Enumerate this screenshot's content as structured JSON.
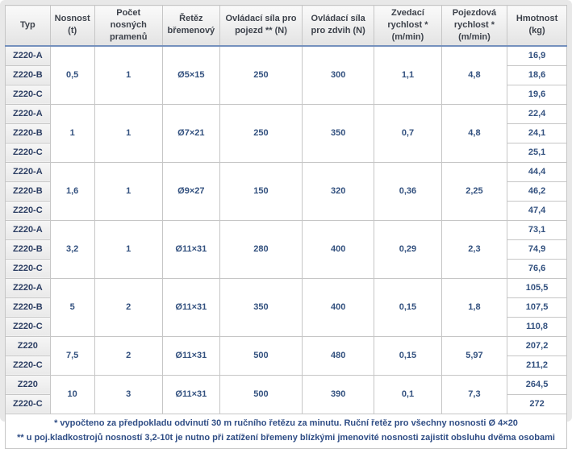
{
  "colors": {
    "frame_bg": "#e8e8e8",
    "header_bg_top": "#fafafa",
    "header_bg_bottom": "#e3e3e3",
    "header_text": "#3d424b",
    "data_text": "#33517f",
    "type_text": "#2c3e63",
    "grid_border": "#c6c6c6",
    "header_accent_line": "#7490bd"
  },
  "table": {
    "headers": [
      "Typ",
      "Nosnost (t)",
      "Počet nosných pramenů",
      "Řetěz břemenový",
      "Ovládací síla pro pojezd ** (N)",
      "Ovládací síla pro zdvih (N)",
      "Zvedací rychlost * (m/min)",
      "Pojezdová rychlost * (m/min)",
      "Hmotnost (kg)"
    ],
    "groups": [
      {
        "types": [
          "Z220-A",
          "Z220-B",
          "Z220-C"
        ],
        "capacity": "0,5",
        "strands": "1",
        "chain": "Ø5×15",
        "travel_force": "250",
        "lift_force": "300",
        "lift_speed": "1,1",
        "travel_speed": "4,8",
        "weights": [
          "16,9",
          "18,6",
          "19,6"
        ]
      },
      {
        "types": [
          "Z220-A",
          "Z220-B",
          "Z220-C"
        ],
        "capacity": "1",
        "strands": "1",
        "chain": "Ø7×21",
        "travel_force": "250",
        "lift_force": "350",
        "lift_speed": "0,7",
        "travel_speed": "4,8",
        "weights": [
          "22,4",
          "24,1",
          "25,1"
        ]
      },
      {
        "types": [
          "Z220-A",
          "Z220-B",
          "Z220-C"
        ],
        "capacity": "1,6",
        "strands": "1",
        "chain": "Ø9×27",
        "travel_force": "150",
        "lift_force": "320",
        "lift_speed": "0,36",
        "travel_speed": "2,25",
        "weights": [
          "44,4",
          "46,2",
          "47,4"
        ]
      },
      {
        "types": [
          "Z220-A",
          "Z220-B",
          "Z220-C"
        ],
        "capacity": "3,2",
        "strands": "1",
        "chain": "Ø11×31",
        "travel_force": "280",
        "lift_force": "400",
        "lift_speed": "0,29",
        "travel_speed": "2,3",
        "weights": [
          "73,1",
          "74,9",
          "76,6"
        ]
      },
      {
        "types": [
          "Z220-A",
          "Z220-B",
          "Z220-C"
        ],
        "capacity": "5",
        "strands": "2",
        "chain": "Ø11×31",
        "travel_force": "350",
        "lift_force": "400",
        "lift_speed": "0,15",
        "travel_speed": "1,8",
        "weights": [
          "105,5",
          "107,5",
          "110,8"
        ]
      },
      {
        "types": [
          "Z220",
          "Z220-C"
        ],
        "capacity": "7,5",
        "strands": "2",
        "chain": "Ø11×31",
        "travel_force": "500",
        "lift_force": "480",
        "lift_speed": "0,15",
        "travel_speed": "5,97",
        "weights": [
          "207,2",
          "211,2"
        ]
      },
      {
        "types": [
          "Z220",
          "Z220-C"
        ],
        "capacity": "10",
        "strands": "3",
        "chain": "Ø11×31",
        "travel_force": "500",
        "lift_force": "390",
        "lift_speed": "0,1",
        "travel_speed": "7,3",
        "weights": [
          "264,5",
          "272"
        ]
      }
    ],
    "footnotes": [
      "* vypočteno za předpokladu odvinutí 30 m ručního řetězu za minutu. Ruční řetěz pro všechny nosnosti Ø 4×20",
      "** u poj.kladkostrojů nosností 3,2-10t je nutno při zatížení břemeny blízkými jmenovité nosnosti zajistit obsluhu dvěma osobami"
    ]
  },
  "chart_data": {
    "type": "table",
    "columns": [
      "Typ",
      "Nosnost (t)",
      "Počet nosných pramenů",
      "Řetěz břemenový",
      "Ovládací síla pro pojezd ** (N)",
      "Ovládací síla pro zdvih (N)",
      "Zvedací rychlost * (m/min)",
      "Pojezdová rychlost * (m/min)",
      "Hmotnost (kg)"
    ],
    "rows": [
      [
        "Z220-A",
        "0,5",
        "1",
        "Ø5×15",
        "250",
        "300",
        "1,1",
        "4,8",
        "16,9"
      ],
      [
        "Z220-B",
        "0,5",
        "1",
        "Ø5×15",
        "250",
        "300",
        "1,1",
        "4,8",
        "18,6"
      ],
      [
        "Z220-C",
        "0,5",
        "1",
        "Ø5×15",
        "250",
        "300",
        "1,1",
        "4,8",
        "19,6"
      ],
      [
        "Z220-A",
        "1",
        "1",
        "Ø7×21",
        "250",
        "350",
        "0,7",
        "4,8",
        "22,4"
      ],
      [
        "Z220-B",
        "1",
        "1",
        "Ø7×21",
        "250",
        "350",
        "0,7",
        "4,8",
        "24,1"
      ],
      [
        "Z220-C",
        "1",
        "1",
        "Ø7×21",
        "250",
        "350",
        "0,7",
        "4,8",
        "25,1"
      ],
      [
        "Z220-A",
        "1,6",
        "1",
        "Ø9×27",
        "150",
        "320",
        "0,36",
        "2,25",
        "44,4"
      ],
      [
        "Z220-B",
        "1,6",
        "1",
        "Ø9×27",
        "150",
        "320",
        "0,36",
        "2,25",
        "46,2"
      ],
      [
        "Z220-C",
        "1,6",
        "1",
        "Ø9×27",
        "150",
        "320",
        "0,36",
        "2,25",
        "47,4"
      ],
      [
        "Z220-A",
        "3,2",
        "1",
        "Ø11×31",
        "280",
        "400",
        "0,29",
        "2,3",
        "73,1"
      ],
      [
        "Z220-B",
        "3,2",
        "1",
        "Ø11×31",
        "280",
        "400",
        "0,29",
        "2,3",
        "74,9"
      ],
      [
        "Z220-C",
        "3,2",
        "1",
        "Ø11×31",
        "280",
        "400",
        "0,29",
        "2,3",
        "76,6"
      ],
      [
        "Z220-A",
        "5",
        "2",
        "Ø11×31",
        "350",
        "400",
        "0,15",
        "1,8",
        "105,5"
      ],
      [
        "Z220-B",
        "5",
        "2",
        "Ø11×31",
        "350",
        "400",
        "0,15",
        "1,8",
        "107,5"
      ],
      [
        "Z220-C",
        "5",
        "2",
        "Ø11×31",
        "350",
        "400",
        "0,15",
        "1,8",
        "110,8"
      ],
      [
        "Z220",
        "7,5",
        "2",
        "Ø11×31",
        "500",
        "480",
        "0,15",
        "5,97",
        "207,2"
      ],
      [
        "Z220-C",
        "7,5",
        "2",
        "Ø11×31",
        "500",
        "480",
        "0,15",
        "5,97",
        "211,2"
      ],
      [
        "Z220",
        "10",
        "3",
        "Ø11×31",
        "500",
        "390",
        "0,1",
        "7,3",
        "264,5"
      ],
      [
        "Z220-C",
        "10",
        "3",
        "Ø11×31",
        "500",
        "390",
        "0,1",
        "7,3",
        "272"
      ]
    ],
    "footnotes": [
      "* vypočteno za předpokladu odvinutí 30 m ručního řetězu za minutu. Ruční řetěz pro všechny nosnosti Ø 4×20",
      "** u poj.kladkostrojů nosností 3,2-10t je nutno při zatížení břemeny blízkými jmenovité nosnosti zajistit obsluhu dvěma osobami"
    ]
  }
}
